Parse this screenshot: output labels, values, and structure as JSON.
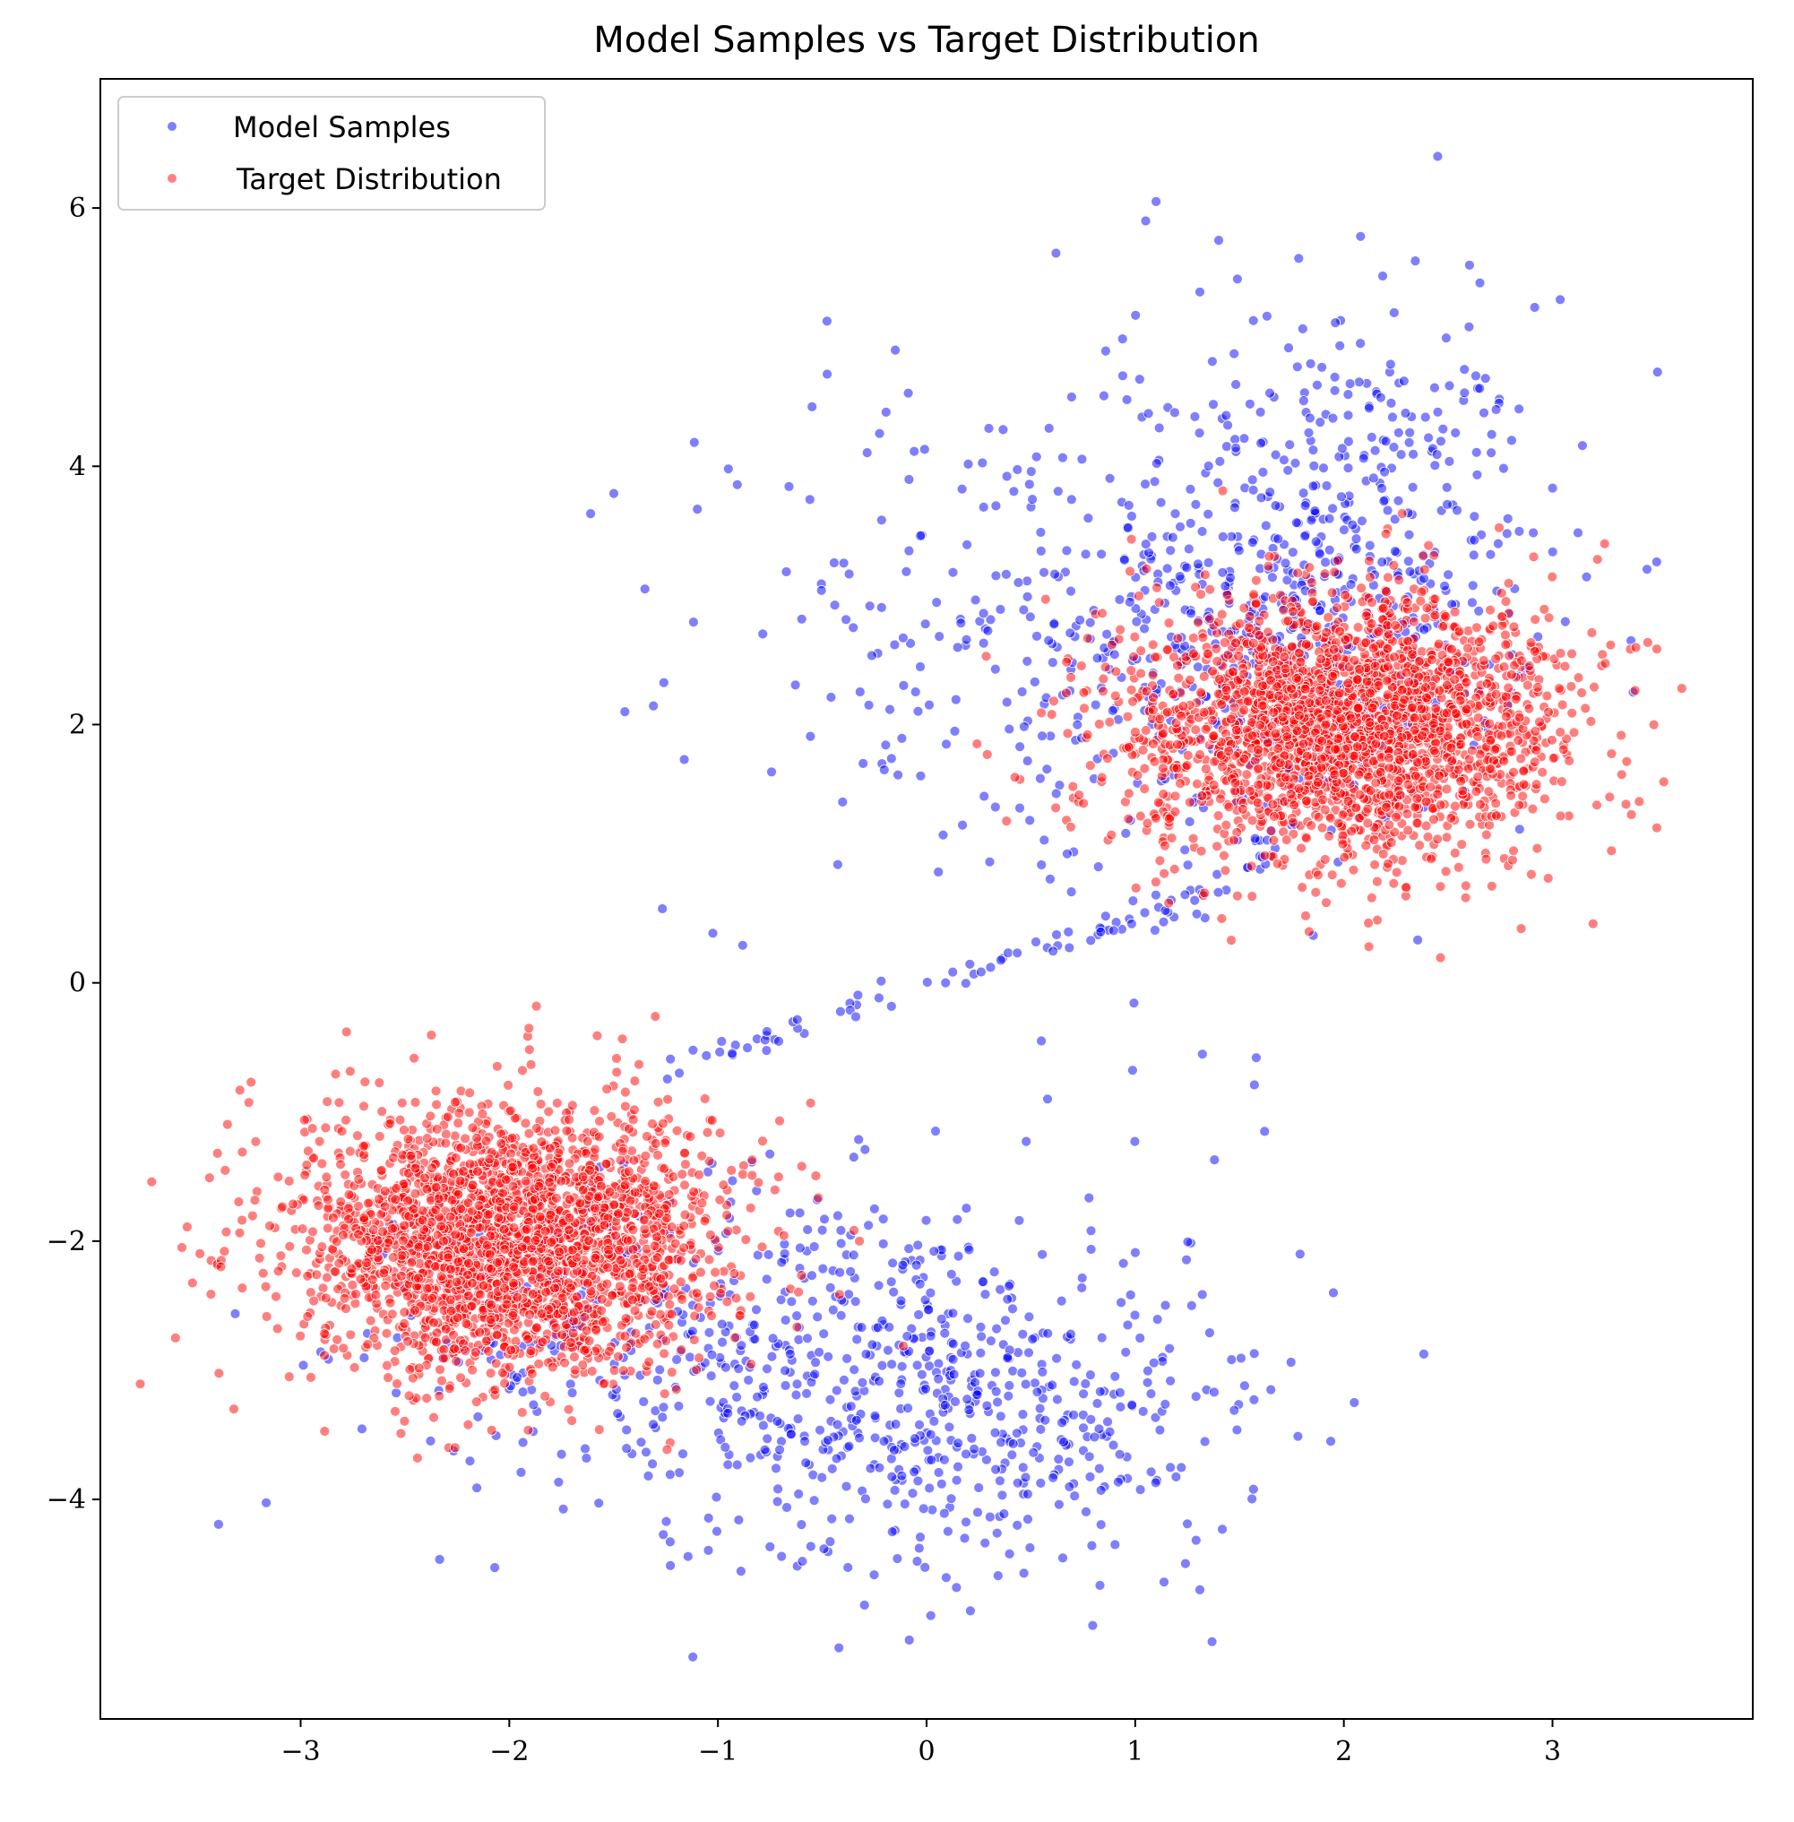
{
  "chart_data": {
    "type": "scatter",
    "title": "Model Samples vs Target Distribution",
    "xlabel": "",
    "ylabel": "",
    "xlim": [
      -3.96,
      3.96
    ],
    "ylim": [
      -5.7,
      7.0
    ],
    "xticks": [
      -3,
      -2,
      -1,
      0,
      1,
      2,
      3
    ],
    "yticks": [
      -4,
      -2,
      0,
      2,
      4,
      6
    ],
    "xtick_labels": [
      "−3",
      "−2",
      "−1",
      "0",
      "1",
      "2",
      "3"
    ],
    "ytick_labels": [
      "−4",
      "−2",
      "0",
      "2",
      "4",
      "6"
    ],
    "grid": false,
    "legend_position": "top-left",
    "series": [
      {
        "name": "Model Samples",
        "color": "#0000ff",
        "components": [
          {
            "kind": "cluster",
            "count": 650,
            "mean": [
              1.85,
              3.1
            ],
            "std": [
              0.55,
              1.0
            ],
            "corr": 0.1
          },
          {
            "kind": "cluster",
            "count": 220,
            "mean": [
              0.3,
              2.6
            ],
            "std": [
              0.75,
              1.05
            ],
            "corr": 0.0
          },
          {
            "kind": "cluster",
            "count": 650,
            "mean": [
              -0.5,
              -2.95
            ],
            "std": [
              0.9,
              0.7
            ],
            "corr": -0.1
          },
          {
            "kind": "cluster",
            "count": 180,
            "mean": [
              0.5,
              -3.5
            ],
            "std": [
              0.5,
              0.6
            ],
            "corr": 0.0
          },
          {
            "kind": "path",
            "count": 90,
            "points": [
              [
                -1.3,
                -0.7
              ],
              [
                -0.6,
                -0.35
              ],
              [
                0.0,
                -0.05
              ],
              [
                0.6,
                0.3
              ],
              [
                1.1,
                0.5
              ],
              [
                1.5,
                0.85
              ],
              [
                1.8,
                1.3
              ]
            ],
            "jitter": 0.04
          }
        ],
        "outliers": [
          [
            2.45,
            6.4
          ],
          [
            1.1,
            6.05
          ],
          [
            1.05,
            5.9
          ],
          [
            2.08,
            5.78
          ],
          [
            1.4,
            5.75
          ],
          [
            0.62,
            5.65
          ],
          [
            1.31,
            5.35
          ],
          [
            1.49,
            5.45
          ],
          [
            -0.15,
            4.9
          ],
          [
            2.6,
            5.08
          ],
          [
            -0.95,
            3.98
          ],
          [
            -1.35,
            3.05
          ],
          [
            0.02,
            -4.9
          ],
          [
            -1.12,
            -5.22
          ],
          [
            -0.42,
            -5.15
          ],
          [
            1.31,
            -4.7
          ],
          [
            1.95,
            -2.4
          ],
          [
            2.05,
            -3.25
          ],
          [
            1.62,
            -1.15
          ],
          [
            1.58,
            -0.58
          ],
          [
            1.38,
            -1.37
          ],
          [
            0.55,
            -0.45
          ],
          [
            0.58,
            -0.9
          ],
          [
            -0.25,
            -1.75
          ],
          [
            1.65,
            -3.15
          ],
          [
            1.79,
            -2.1
          ]
        ]
      },
      {
        "name": "Target Distribution",
        "color": "#ff0000",
        "components": [
          {
            "kind": "cluster",
            "count": 2500,
            "mean": [
              2.0,
              2.0
            ],
            "std": [
              0.5,
              0.5
            ],
            "corr": 0.0
          },
          {
            "kind": "cluster",
            "count": 2500,
            "mean": [
              -2.0,
              -2.0
            ],
            "std": [
              0.5,
              0.5
            ],
            "corr": 0.0
          }
        ],
        "outliers": [
          [
            3.62,
            2.28
          ],
          [
            3.25,
            3.4
          ],
          [
            3.5,
            1.2
          ],
          [
            2.85,
            0.42
          ],
          [
            2.12,
            0.28
          ],
          [
            -3.6,
            -2.75
          ],
          [
            -3.32,
            -3.3
          ],
          [
            -2.78,
            -0.38
          ],
          [
            -1.87,
            -0.18
          ],
          [
            -1.3,
            -0.26
          ],
          [
            -2.44,
            -3.68
          ],
          [
            -2.26,
            -3.6
          ]
        ]
      }
    ]
  }
}
